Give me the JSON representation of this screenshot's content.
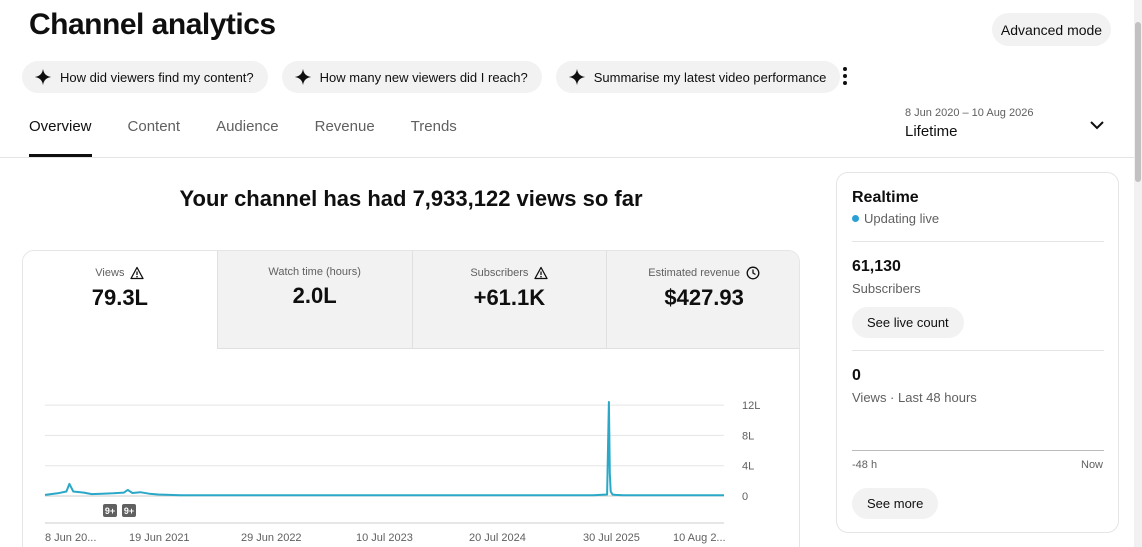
{
  "header": {
    "title": "Channel analytics",
    "advanced_mode": "Advanced mode"
  },
  "chips": [
    {
      "label": "How did viewers find my content?",
      "icon": "sparkle-icon"
    },
    {
      "label": "How many new viewers did I reach?",
      "icon": "sparkle-icon"
    },
    {
      "label": "Summarise my latest video performance",
      "icon": "sparkle-icon"
    }
  ],
  "tabs": [
    {
      "label": "Overview",
      "active": true
    },
    {
      "label": "Content",
      "active": false
    },
    {
      "label": "Audience",
      "active": false
    },
    {
      "label": "Revenue",
      "active": false
    },
    {
      "label": "Trends",
      "active": false
    }
  ],
  "date_range": {
    "range": "8 Jun 2020 – 10 Aug 2026",
    "period": "Lifetime"
  },
  "headline": "Your channel has had 7,933,122 views so far",
  "metrics": [
    {
      "label": "Views",
      "value": "79.3L",
      "icon": "warning-icon",
      "active": true
    },
    {
      "label": "Watch time (hours)",
      "value": "2.0L",
      "icon": "",
      "active": false
    },
    {
      "label": "Subscribers",
      "value": "+61.1K",
      "icon": "warning-icon",
      "active": false
    },
    {
      "label": "Estimated revenue",
      "value": "$427.93",
      "icon": "clock-icon",
      "active": false
    }
  ],
  "chart_data": {
    "type": "line",
    "series": [
      {
        "values_x": [
          "2020-06-08",
          "2020-07-20",
          "2020-08-18",
          "2020-08-28",
          "2020-09-10",
          "2020-10-15",
          "2020-11-10",
          "2020-12-15",
          "2021-01-20",
          "2021-02-25",
          "2021-03-10",
          "2021-03-25",
          "2021-04-20",
          "2021-05-20",
          "2021-06-19",
          "2021-09-01",
          "2022-01-01",
          "2022-06-29",
          "2023-01-01",
          "2023-07-10",
          "2024-01-01",
          "2024-07-20",
          "2025-01-01",
          "2025-06-01",
          "2025-07-18",
          "2025-07-24",
          "2025-07-27",
          "2025-07-30",
          "2025-08-05",
          "2025-08-15",
          "2025-09-10",
          "2025-10-01",
          "2026-01-01",
          "2026-08-10"
        ],
        "values_y": [
          0.15,
          0.35,
          0.6,
          1.6,
          0.6,
          0.45,
          0.25,
          0.3,
          0.35,
          0.45,
          0.8,
          0.4,
          0.5,
          0.3,
          0.2,
          0.1,
          0.1,
          0.1,
          0.1,
          0.1,
          0.1,
          0.1,
          0.1,
          0.1,
          0.2,
          12.4,
          3.0,
          0.6,
          0.2,
          0.15,
          0.1,
          0.1,
          0.1,
          0.1
        ]
      }
    ],
    "x_ticks": [
      "8 Jun 20...",
      "19 Jun 2021",
      "29 Jun 2022",
      "10 Jul 2023",
      "20 Jul 2024",
      "30 Jul 2025",
      "10 Aug 2..."
    ],
    "y_ticks": [
      "12L",
      "8L",
      "4L",
      "0"
    ],
    "y_unit": "L",
    "ylim": [
      0,
      12
    ],
    "annotations": [
      "9+",
      "9+"
    ],
    "color": "#2ba8c7",
    "grid": true
  },
  "realtime": {
    "title": "Realtime",
    "status": "Updating live",
    "subscribers_value": "61,130",
    "subscribers_label": "Subscribers",
    "live_count_button": "See live count",
    "views_value": "0",
    "views_label": "Views · Last 48 hours",
    "axis_start": "-48 h",
    "axis_end": "Now",
    "see_more_button": "See more"
  }
}
